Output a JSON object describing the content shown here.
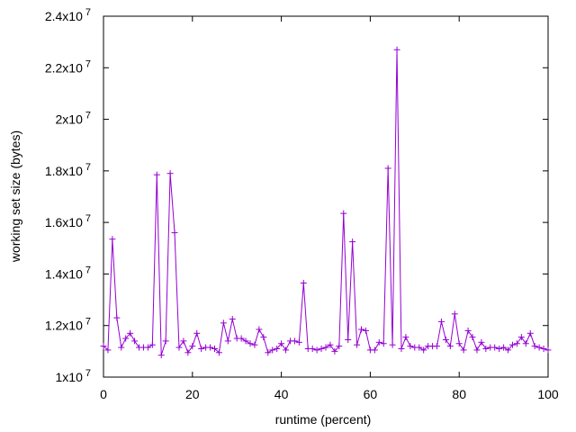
{
  "chart_data": {
    "type": "line",
    "xlabel": "runtime (percent)",
    "ylabel": "working set size (bytes)",
    "xlim": [
      0,
      100
    ],
    "ylim": [
      10000000,
      24000000
    ],
    "x_ticks": [
      {
        "value": 0,
        "label": "0"
      },
      {
        "value": 20,
        "label": "20"
      },
      {
        "value": 40,
        "label": "40"
      },
      {
        "value": 60,
        "label": "60"
      },
      {
        "value": 80,
        "label": "80"
      },
      {
        "value": 100,
        "label": "100"
      }
    ],
    "y_ticks": [
      {
        "value": 10000000,
        "mantissa": "1x10",
        "exp": "7"
      },
      {
        "value": 12000000,
        "mantissa": "1.2x10",
        "exp": "7"
      },
      {
        "value": 14000000,
        "mantissa": "1.4x10",
        "exp": "7"
      },
      {
        "value": 16000000,
        "mantissa": "1.6x10",
        "exp": "7"
      },
      {
        "value": 18000000,
        "mantissa": "1.8x10",
        "exp": "7"
      },
      {
        "value": 20000000,
        "mantissa": "2x10",
        "exp": "7"
      },
      {
        "value": 22000000,
        "mantissa": "2.2x10",
        "exp": "7"
      },
      {
        "value": 24000000,
        "mantissa": "2.4x10",
        "exp": "7"
      }
    ],
    "grid": false,
    "marker": "plus",
    "color": "#9400d3",
    "series": [
      {
        "x": [
          0,
          1,
          2,
          3,
          4,
          5,
          6,
          7,
          8,
          9,
          10,
          11,
          12,
          13,
          14,
          15,
          16,
          17,
          18,
          19,
          20,
          21,
          22,
          23,
          24,
          25,
          26,
          27,
          28,
          29,
          30,
          31,
          32,
          33,
          34,
          35,
          36,
          37,
          38,
          39,
          40,
          41,
          42,
          43,
          44,
          45,
          46,
          47,
          48,
          49,
          50,
          51,
          52,
          53,
          54,
          55,
          56,
          57,
          58,
          59,
          60,
          61,
          62,
          63,
          64,
          65,
          66,
          67,
          68,
          69,
          70,
          71,
          72,
          73,
          74,
          75,
          76,
          77,
          78,
          79,
          80,
          81,
          82,
          83,
          84,
          85,
          86,
          87,
          88,
          89,
          90,
          91,
          92,
          93,
          94,
          95,
          96,
          97,
          98,
          99,
          100
        ],
        "y": [
          11200000,
          11050000,
          15350000,
          12300000,
          11150000,
          11500000,
          11700000,
          11400000,
          11150000,
          11150000,
          11150000,
          11250000,
          17850000,
          10850000,
          11400000,
          17900000,
          15600000,
          11150000,
          11400000,
          10950000,
          11200000,
          11700000,
          11100000,
          11150000,
          11150000,
          11100000,
          10950000,
          12100000,
          11400000,
          12250000,
          11500000,
          11500000,
          11400000,
          11300000,
          11250000,
          11850000,
          11550000,
          10950000,
          11050000,
          11100000,
          11300000,
          11050000,
          11400000,
          11400000,
          11350000,
          13650000,
          11100000,
          11100000,
          11050000,
          11100000,
          11150000,
          11250000,
          11000000,
          11200000,
          16350000,
          11450000,
          15250000,
          11250000,
          11850000,
          11800000,
          11050000,
          11050000,
          11350000,
          11300000,
          18100000,
          11250000,
          22700000,
          11100000,
          11550000,
          11200000,
          11150000,
          11150000,
          11050000,
          11200000,
          11200000,
          11200000,
          12150000,
          11450000,
          11200000,
          12450000,
          11300000,
          11050000,
          11800000,
          11550000,
          11050000,
          11350000,
          11100000,
          11150000,
          11150000,
          11100000,
          11150000,
          11050000,
          11250000,
          11300000,
          11550000,
          11300000,
          11700000,
          11200000,
          11150000,
          11100000,
          11050000
        ]
      }
    ]
  }
}
